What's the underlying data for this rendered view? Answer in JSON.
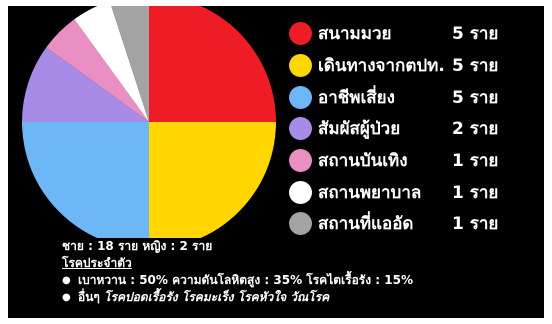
{
  "chart_data": {
    "type": "pie",
    "unit": "ราย",
    "slices": [
      {
        "label": "สนามมวย",
        "value": 5,
        "color": "#ee1c25"
      },
      {
        "label": "เดินทางจากตปท.",
        "value": 5,
        "color": "#ffd600"
      },
      {
        "label": "อาชีพเสี่ยง",
        "value": 5,
        "color": "#6eb7f7"
      },
      {
        "label": "สัมผัสผู้ป่วย",
        "value": 2,
        "color": "#a88be6"
      },
      {
        "label": "สถานบันเทิง",
        "value": 1,
        "color": "#e98fc3"
      },
      {
        "label": "สถานพยาบาล",
        "value": 1,
        "color": "#ffffff"
      },
      {
        "label": "สถานที่แออัด",
        "value": 1,
        "color": "#a3a3a3"
      }
    ]
  },
  "legend_counts": [
    "5 ราย",
    "5 ราย",
    "5 ราย",
    "2 ราย",
    "1 ราย",
    "1 ราย",
    "1 ราย"
  ],
  "footer": {
    "gender": "ชาย : 18 ราย หญิง : 2 ราย",
    "section_title": "โรคประจำตัว",
    "line1": {
      "diabetes_label": "เบาหวาน : ",
      "diabetes_value": "50%",
      "hypertension_label": " ความดันโลหิตสูง : ",
      "hypertension_value": "35%",
      "ckd_label": " โรคไตเรื้อรัง : ",
      "ckd_value": "15%"
    },
    "line2": {
      "prefix": "อื่นๆ ",
      "items": "โรคปอดเรื้อรัง โรคมะเร็ง โรคหัวใจ วัณโรค"
    }
  }
}
